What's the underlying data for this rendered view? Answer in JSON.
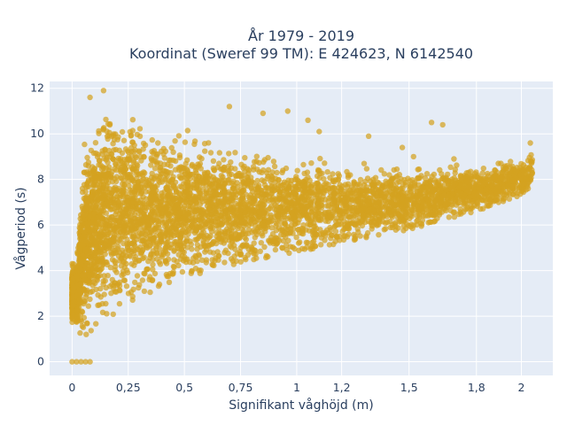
{
  "chart_data": {
    "type": "scatter",
    "title_line1": "År 1979 - 2019",
    "title_line2": "Koordinat (Sweref 99 TM): E 424623, N 6142540",
    "xlabel": "Signifikant våghöjd (m)",
    "ylabel": "Vågperiod (s)",
    "xlim": [
      -0.1,
      2.14
    ],
    "ylim": [
      -0.6,
      12.3
    ],
    "x_ticks": [
      0,
      0.25,
      0.5,
      0.75,
      1,
      1.2,
      1.5,
      1.8,
      2
    ],
    "x_tick_labels": [
      "0",
      "0,25",
      "0,5",
      "0,75",
      "1",
      "1,2",
      "1,5",
      "1,8",
      "2"
    ],
    "y_ticks": [
      0,
      2,
      4,
      6,
      8,
      10,
      12
    ],
    "y_tick_labels": [
      "0",
      "2",
      "4",
      "6",
      "8",
      "10",
      "12"
    ],
    "grid": true,
    "marker_color": "#D4A220",
    "background_color": "#E5ECF6",
    "series": [
      {
        "envelope_upper": [
          [
            0.02,
            4.5
          ],
          [
            0.05,
            9.5
          ],
          [
            0.1,
            11.2
          ],
          [
            0.15,
            11.8
          ],
          [
            0.25,
            11.3
          ],
          [
            0.35,
            10.8
          ],
          [
            0.5,
            10.3
          ],
          [
            0.75,
            9.6
          ],
          [
            1.0,
            9.4
          ],
          [
            1.2,
            9.0
          ],
          [
            1.5,
            8.7
          ],
          [
            1.8,
            8.8
          ],
          [
            2.0,
            9.0
          ],
          [
            2.05,
            9.5
          ]
        ],
        "envelope_lower": [
          [
            0.0,
            1.5
          ],
          [
            0.05,
            1.1
          ],
          [
            0.1,
            1.3
          ],
          [
            0.2,
            2.0
          ],
          [
            0.3,
            2.8
          ],
          [
            0.5,
            3.7
          ],
          [
            0.75,
            4.3
          ],
          [
            1.0,
            4.8
          ],
          [
            1.2,
            5.2
          ],
          [
            1.5,
            5.8
          ],
          [
            1.8,
            6.6
          ],
          [
            2.0,
            7.3
          ],
          [
            2.05,
            7.6
          ]
        ],
        "outliers": [
          [
            0.14,
            11.9
          ],
          [
            0.08,
            11.6
          ],
          [
            0.7,
            11.2
          ],
          [
            0.85,
            10.9
          ],
          [
            0.96,
            11.0
          ],
          [
            1.05,
            10.6
          ],
          [
            1.1,
            10.1
          ],
          [
            1.32,
            9.9
          ],
          [
            1.47,
            9.4
          ],
          [
            1.52,
            9.0
          ],
          [
            1.6,
            10.5
          ],
          [
            1.65,
            10.4
          ],
          [
            1.7,
            8.9
          ],
          [
            2.04,
            9.6
          ],
          [
            1.3,
            8.7
          ]
        ],
        "zero_period_points": [
          [
            0.0,
            0.0
          ],
          [
            0.02,
            0.0
          ],
          [
            0.04,
            0.0
          ],
          [
            0.06,
            0.0
          ],
          [
            0.08,
            0.0
          ]
        ],
        "point_count": 4200
      }
    ]
  }
}
